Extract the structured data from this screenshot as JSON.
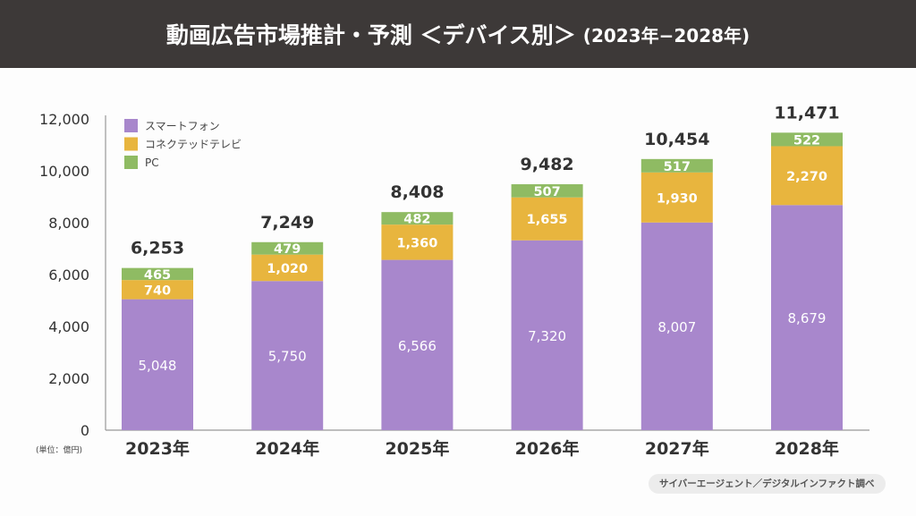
{
  "header": {
    "title": "動画広告市場推計・予測 ＜デバイス別＞",
    "subtitle": "(2023年−2028年)"
  },
  "chart_data": {
    "type": "bar",
    "stacked": true,
    "title": "動画広告市場推計・予測 ＜デバイス別＞ (2023年−2028年)",
    "categories": [
      "2023年",
      "2024年",
      "2025年",
      "2026年",
      "2027年",
      "2028年"
    ],
    "series": [
      {
        "name": "スマートフォン",
        "color": "#a887cc",
        "values": [
          5048,
          5750,
          6566,
          7320,
          8007,
          8679
        ],
        "labels": [
          "5,048",
          "5,750",
          "6,566",
          "7,320",
          "8,007",
          "8,679"
        ]
      },
      {
        "name": "コネクテッドテレビ",
        "color": "#e8b53e",
        "values": [
          740,
          1020,
          1360,
          1655,
          1930,
          2270
        ],
        "labels": [
          "740",
          "1,020",
          "1,360",
          "1,655",
          "1,930",
          "2,270"
        ]
      },
      {
        "name": "PC",
        "color": "#8fbb63",
        "values": [
          465,
          479,
          482,
          507,
          517,
          522
        ],
        "labels": [
          "465",
          "479",
          "482",
          "507",
          "517",
          "522"
        ]
      }
    ],
    "totals": [
      "6,253",
      "7,249",
      "8,408",
      "9,482",
      "10,454",
      "11,471"
    ],
    "yticks": [
      "0",
      "2,000",
      "4,000",
      "6,000",
      "8,000",
      "10,000",
      "12,000"
    ],
    "ylim": [
      0,
      12000
    ],
    "ylabel": "(単位：億円)",
    "legend": "top-left",
    "grid": false
  },
  "source": "サイバーエージェント／デジタルインファクト調べ"
}
